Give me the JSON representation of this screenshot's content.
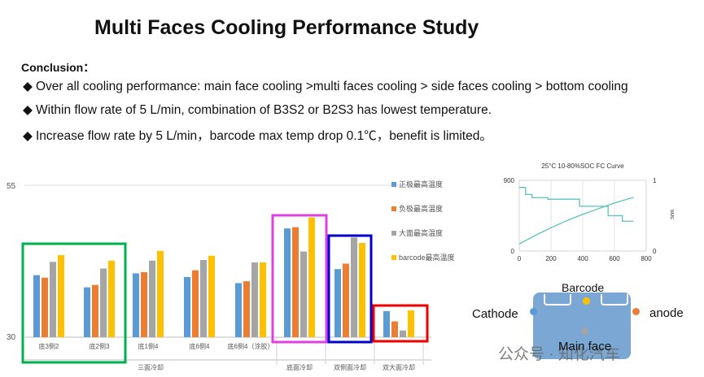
{
  "title": "Multi Faces Cooling Performance Study",
  "conclusion_label": "Conclusion：",
  "bullets": [
    "Over all cooling performance: main face cooling >multi faces cooling  > side faces cooling  > bottom cooling",
    "Within flow rate of 5 L/min, combination of B3S2 or B2S3 has lowest temperature.",
    "Increase flow rate by 5 L/min，barcode max temp drop 0.1℃，benefit is limited。"
  ],
  "bullet_icon": "diamond-icon",
  "chart_data": [
    {
      "type": "bar",
      "yticks": [
        "55",
        "30"
      ],
      "ylim": [
        30,
        55
      ],
      "grid": true,
      "legend_position": "right",
      "categories": [
        "底3侧2",
        "底2侧3",
        "底1侧4",
        "底6侧4",
        "底6侧4（涂胶）",
        "",
        "",
        ""
      ],
      "group_labels": [
        "三面冷却",
        "底面冷却",
        "双侧面冷却",
        "双大面冷却"
      ],
      "series": [
        {
          "name": "正极最高温度",
          "color": "#5b9bd5",
          "values": [
            40.2,
            38.2,
            40.5,
            39.9,
            38.9,
            47.9,
            41.2,
            34.3
          ]
        },
        {
          "name": "负极最高温度",
          "color": "#ed7d31",
          "values": [
            39.8,
            38.6,
            40.7,
            41.0,
            39.2,
            48.1,
            42.1,
            32.6
          ]
        },
        {
          "name": "大面最高温度",
          "color": "#a5a5a5",
          "values": [
            42.4,
            41.3,
            42.6,
            42.7,
            42.3,
            44.1,
            46.4,
            31.1
          ]
        },
        {
          "name": "barcode最高温度",
          "color": "#ffc000",
          "values": [
            43.5,
            42.6,
            44.2,
            43.4,
            42.3,
            49.7,
            45.5,
            34.4
          ]
        }
      ],
      "highlight_boxes": [
        {
          "group": "底3侧2-底2侧3",
          "color": "#00b050"
        },
        {
          "group": "底面冷却",
          "color": "#e040e0"
        },
        {
          "group": "双侧面冷却",
          "color": "#0000cc"
        },
        {
          "group": "双大面冷却",
          "color": "#ee0000"
        }
      ]
    },
    {
      "type": "line",
      "title": "25°C  10-80%SOC FC Curve",
      "xlim": [
        0,
        800
      ],
      "xticks": [
        "0",
        "200",
        "400",
        "600",
        "800"
      ],
      "ylim_left": [
        0,
        900
      ],
      "yticks_left": [
        "900",
        "0"
      ],
      "ylim_right": [
        0,
        1
      ],
      "yticks_right": [
        "1",
        "0"
      ],
      "ylabel_right": "soc",
      "series": [
        {
          "color": "#5bc0c0",
          "x": [
            0,
            40,
            40,
            80,
            80,
            180,
            180,
            380,
            380,
            560,
            560,
            650,
            650,
            720
          ],
          "y": [
            810,
            810,
            720,
            720,
            680,
            680,
            660,
            660,
            570,
            570,
            450,
            450,
            380,
            380
          ]
        },
        {
          "color": "#5bc0c0",
          "x": [
            0,
            100,
            200,
            300,
            400,
            500,
            600,
            720
          ],
          "y": [
            0.1,
            0.22,
            0.33,
            0.43,
            0.52,
            0.6,
            0.68,
            0.76
          ]
        }
      ]
    }
  ],
  "diagram": {
    "barcode": "Barcode",
    "cathode": "Cathode",
    "anode": "anode",
    "main_face": "Main face",
    "colors": {
      "cathode": "#5b9bd5",
      "barcode": "#ffc000",
      "anode": "#ed7d31",
      "main_face": "#a5a5a5",
      "body": "#7aa7d4"
    }
  },
  "watermark": "公众号 · 知化汽车"
}
